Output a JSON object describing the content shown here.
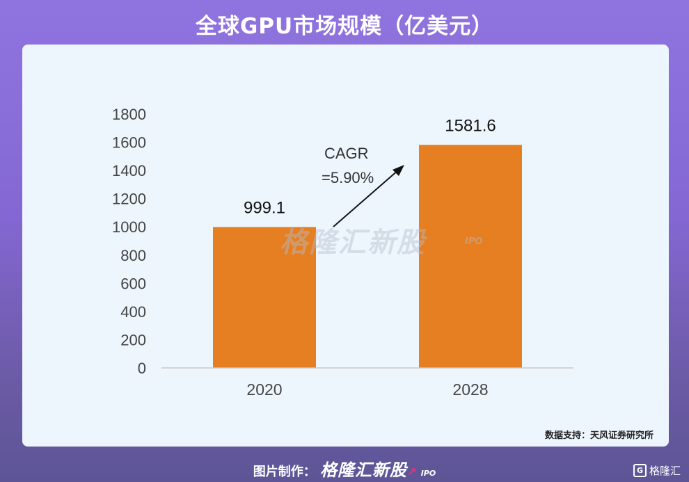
{
  "header": {
    "title": "全球GPU市场规模（亿美元）"
  },
  "chart_data": {
    "type": "bar",
    "categories": [
      "2020",
      "2028"
    ],
    "values": [
      999.1,
      1581.6
    ],
    "value_labels": [
      "999.1",
      "1581.6"
    ],
    "ylim": [
      0,
      1800
    ],
    "yticks": [
      0,
      200,
      400,
      600,
      800,
      1000,
      1200,
      1400,
      1600,
      1800
    ],
    "bar_color": "#e67e22",
    "annotation": {
      "line1": "CAGR",
      "line2": "=5.90%"
    }
  },
  "watermark": {
    "text": "格隆汇新股",
    "sub": "IPO"
  },
  "source": "数据支持：天风证券研究所",
  "footer": {
    "prefix": "图片制作：",
    "brand": "格隆汇新股",
    "ipo": "IPO"
  },
  "corner_logo": {
    "icon": "G",
    "text": "格隆汇"
  }
}
